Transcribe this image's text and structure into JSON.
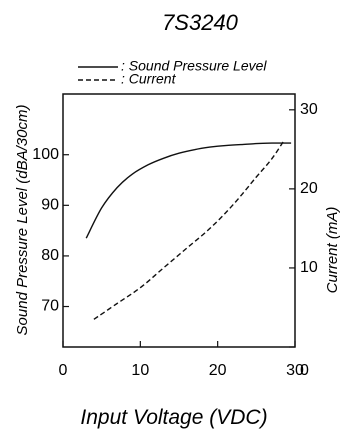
{
  "chart_data": {
    "type": "line",
    "title": "7S3240",
    "xlabel": "Input Voltage (VDC)",
    "ylabel_left": "Sound Pressure Level (dBA/30cm)",
    "ylabel_right": "Current (mA)",
    "xlim": [
      0,
      30
    ],
    "ylim_left": [
      62,
      112
    ],
    "ylim_right": [
      0,
      32
    ],
    "xticks": [
      "0",
      "10",
      "20",
      "30"
    ],
    "yticks_left": [
      "70",
      "80",
      "90",
      "100"
    ],
    "yticks_right": [
      "0",
      "10",
      "20",
      "30"
    ],
    "legend_placement": "top",
    "series": [
      {
        "name": ": Sound Pressure Level",
        "axis": "left",
        "style": "solid",
        "color": "#111111",
        "x": [
          3,
          5,
          7,
          9,
          11,
          13,
          15,
          17,
          19,
          21,
          23,
          25,
          27,
          29.5
        ],
        "y": [
          83.5,
          89.5,
          93.5,
          96.2,
          98.0,
          99.3,
          100.3,
          101.0,
          101.5,
          101.8,
          102.0,
          102.2,
          102.3,
          102.3
        ]
      },
      {
        "name": ": Current",
        "axis": "right",
        "style": "dashed",
        "color": "#111111",
        "x": [
          4,
          7,
          10,
          13,
          16,
          19,
          22,
          25,
          27,
          28.5
        ],
        "y": [
          3.5,
          5.5,
          7.5,
          10.0,
          12.5,
          15.0,
          18.0,
          21.5,
          23.8,
          26.0
        ]
      }
    ]
  }
}
